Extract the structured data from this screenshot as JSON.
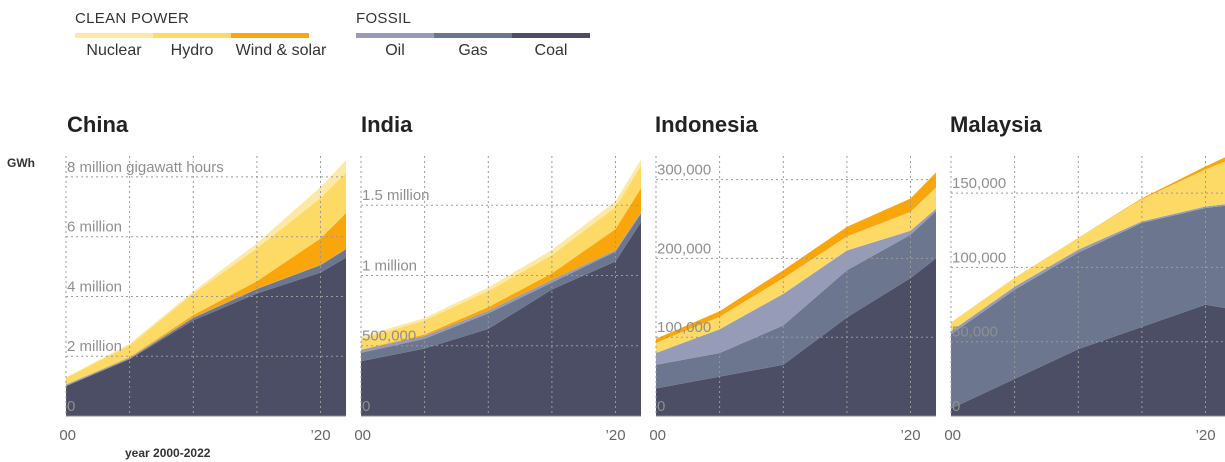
{
  "legend": {
    "clean_title": "CLEAN POWER",
    "fossil_title": "FOSSIL",
    "clean_items": [
      {
        "label": "Nuclear",
        "color": "#fce9a8"
      },
      {
        "label": "Hydro",
        "color": "#fdd966"
      },
      {
        "label": "Wind & solar",
        "color": "#f9a50c"
      }
    ],
    "fossil_items": [
      {
        "label": "Oil",
        "color": "#969cb8"
      },
      {
        "label": "Gas",
        "color": "#6c768e"
      },
      {
        "label": "Coal",
        "color": "#4b4e64"
      }
    ]
  },
  "y_unit_label": "GWh",
  "x_axis_label": "year 2000-2022",
  "chart_data": [
    {
      "type": "area",
      "title": "China",
      "ylabel": "GWh",
      "x": [
        2000,
        2005,
        2010,
        2015,
        2020,
        2022
      ],
      "xtick_labels": [
        "’00",
        "’20"
      ],
      "ylim": [
        0,
        8700000
      ],
      "yticks": [
        0,
        2000000,
        4000000,
        6000000,
        8000000
      ],
      "ytick_labels": [
        "0",
        "2 million",
        "4 million",
        "6 million",
        "8 million gigawatt hours"
      ],
      "grid": true,
      "series": [
        {
          "name": "Coal",
          "values": [
            1000000,
            1900000,
            3200000,
            4100000,
            4800000,
            5300000
          ]
        },
        {
          "name": "Gas",
          "values": [
            10000,
            20000,
            80000,
            150000,
            250000,
            280000
          ]
        },
        {
          "name": "Oil",
          "values": [
            40000,
            30000,
            20000,
            10000,
            10000,
            10000
          ]
        },
        {
          "name": "Wind & solar",
          "values": [
            5000,
            20000,
            80000,
            250000,
            880000,
            1200000
          ]
        },
        {
          "name": "Hydro",
          "values": [
            220000,
            400000,
            720000,
            1100000,
            1350000,
            1350000
          ]
        },
        {
          "name": "Nuclear",
          "values": [
            15000,
            50000,
            70000,
            170000,
            370000,
            420000
          ]
        }
      ]
    },
    {
      "type": "area",
      "title": "India",
      "x": [
        2000,
        2005,
        2010,
        2015,
        2020,
        2022
      ],
      "xtick_labels": [
        "’00",
        "’20"
      ],
      "ylim": [
        0,
        1850000
      ],
      "yticks": [
        0,
        500000,
        1000000,
        1500000
      ],
      "ytick_labels": [
        "0",
        "500,000",
        "1 million",
        "1.5 million"
      ],
      "grid": true,
      "series": [
        {
          "name": "Coal",
          "values": [
            390000,
            480000,
            620000,
            900000,
            1100000,
            1380000
          ]
        },
        {
          "name": "Gas",
          "values": [
            60000,
            70000,
            110000,
            50000,
            70000,
            60000
          ]
        },
        {
          "name": "Oil",
          "values": [
            20000,
            20000,
            20000,
            20000,
            10000,
            10000
          ]
        },
        {
          "name": "Wind & solar",
          "values": [
            3000,
            10000,
            25000,
            45000,
            150000,
            170000
          ]
        },
        {
          "name": "Hydro",
          "values": [
            75000,
            100000,
            115000,
            130000,
            155000,
            160000
          ]
        },
        {
          "name": "Nuclear",
          "values": [
            17000,
            17000,
            25000,
            37000,
            43000,
            46000
          ]
        }
      ]
    },
    {
      "type": "area",
      "title": "Indonesia",
      "x": [
        2000,
        2005,
        2010,
        2015,
        2020,
        2022
      ],
      "xtick_labels": [
        "’00",
        "’20"
      ],
      "ylim": [
        0,
        330000
      ],
      "yticks": [
        0,
        100000,
        200000,
        300000
      ],
      "ytick_labels": [
        "0",
        "100,000",
        "200,000",
        "300,000"
      ],
      "grid": true,
      "series": [
        {
          "name": "Coal",
          "values": [
            35000,
            50000,
            65000,
            125000,
            175000,
            200000
          ]
        },
        {
          "name": "Gas",
          "values": [
            30000,
            30000,
            50000,
            60000,
            55000,
            60000
          ]
        },
        {
          "name": "Oil",
          "values": [
            15000,
            30000,
            40000,
            25000,
            5000,
            3000
          ]
        },
        {
          "name": "Hydro",
          "values": [
            13000,
            16000,
            20000,
            18000,
            24000,
            27000
          ]
        },
        {
          "name": "Wind & solar",
          "values": [
            5000,
            7000,
            10000,
            12000,
            17000,
            19000
          ]
        }
      ]
    },
    {
      "type": "area",
      "title": "Malaysia",
      "x": [
        2000,
        2005,
        2010,
        2015,
        2020,
        2022
      ],
      "xtick_labels": [
        "’00",
        "’20"
      ],
      "ylim": [
        0,
        175000
      ],
      "yticks": [
        0,
        50000,
        100000,
        150000
      ],
      "ytick_labels": [
        "0",
        "50,000",
        "100,000",
        "150,000"
      ],
      "grid": true,
      "series": [
        {
          "name": "Coal",
          "values": [
            5000,
            25000,
            45000,
            60000,
            75000,
            72000
          ]
        },
        {
          "name": "Gas",
          "values": [
            50000,
            60000,
            65000,
            70000,
            65000,
            70000
          ]
        },
        {
          "name": "Oil",
          "values": [
            2000,
            2000,
            2000,
            1000,
            1000,
            1000
          ]
        },
        {
          "name": "Hydro",
          "values": [
            6000,
            6000,
            8000,
            15000,
            25000,
            30000
          ]
        },
        {
          "name": "Wind & solar",
          "values": [
            0,
            0,
            0,
            500,
            2000,
            3000
          ]
        }
      ]
    }
  ]
}
